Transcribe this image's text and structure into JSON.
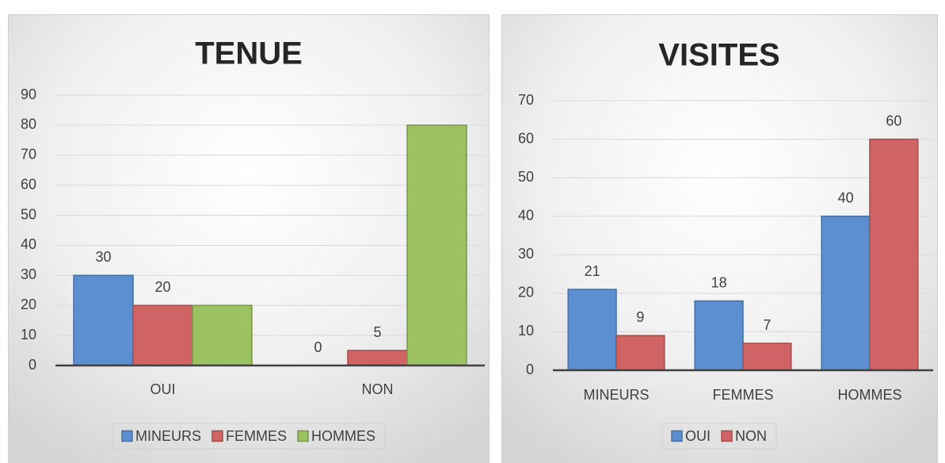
{
  "chart_data": [
    {
      "type": "bar",
      "title": "TENUE",
      "categories": [
        "OUI",
        "NON"
      ],
      "series": [
        {
          "name": "MINEURS",
          "color": "#5b8fd0",
          "values": [
            30,
            0
          ],
          "data_labels": true
        },
        {
          "name": "FEMMES",
          "color": "#d06363",
          "values": [
            20,
            5
          ],
          "data_labels": true
        },
        {
          "name": "HOMMES",
          "color": "#9bc160",
          "values": [
            20,
            80
          ],
          "data_labels": false
        }
      ],
      "ylim": [
        0,
        90
      ],
      "yticks": [
        0,
        10,
        20,
        30,
        40,
        50,
        60,
        70,
        80,
        90
      ],
      "grid": true,
      "legend": "bottom"
    },
    {
      "type": "bar",
      "title": "VISITES",
      "categories": [
        "MINEURS",
        "FEMMES",
        "HOMMES"
      ],
      "series": [
        {
          "name": "OUI",
          "color": "#5b8fd0",
          "values": [
            21,
            18,
            40
          ],
          "data_labels": true
        },
        {
          "name": "NON",
          "color": "#d06363",
          "values": [
            9,
            7,
            60
          ],
          "data_labels": true
        }
      ],
      "ylim": [
        0,
        70
      ],
      "yticks": [
        0,
        10,
        20,
        30,
        40,
        50,
        60,
        70
      ],
      "grid": true,
      "legend": "bottom"
    }
  ]
}
